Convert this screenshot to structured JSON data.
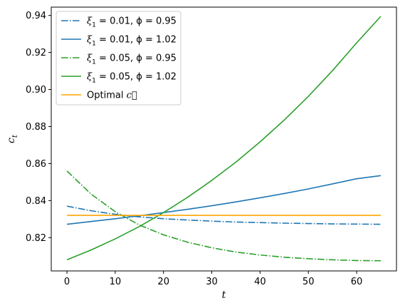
{
  "chart_data": {
    "type": "line",
    "title": "",
    "xlabel": "t",
    "ylabel": "c_t",
    "xlim": [
      -3.25,
      68.25
    ],
    "ylim": [
      0.802,
      0.9445
    ],
    "xticks": [
      0,
      10,
      20,
      30,
      40,
      50,
      60
    ],
    "xtick_labels": [
      "0",
      "10",
      "20",
      "30",
      "40",
      "50",
      "60"
    ],
    "yticks": [
      0.82,
      0.84,
      0.86,
      0.88,
      0.9,
      0.92,
      0.94
    ],
    "ytick_labels": [
      "0.82",
      "0.84",
      "0.86",
      "0.88",
      "0.90",
      "0.92",
      "0.94"
    ],
    "grid": false,
    "legend_position": "upper-left",
    "x": [
      0,
      5,
      10,
      15,
      20,
      25,
      30,
      35,
      40,
      45,
      50,
      55,
      60,
      65
    ],
    "series": [
      {
        "name_prefix": "ξ",
        "name_sub": "1",
        "name_rest": " = 0.01, ϕ = 0.95",
        "color": "#1f77b4",
        "style": "dashdot",
        "values": [
          0.837,
          0.8345,
          0.8326,
          0.8312,
          0.8302,
          0.8295,
          0.8289,
          0.8284,
          0.8281,
          0.8278,
          0.8276,
          0.8274,
          0.8273,
          0.8272
        ]
      },
      {
        "name_prefix": "ξ",
        "name_sub": "1",
        "name_rest": " = 0.01, ϕ = 1.02",
        "color": "#1f77b4",
        "style": "solid",
        "values": [
          0.8272,
          0.8287,
          0.8302,
          0.8318,
          0.8335,
          0.8353,
          0.8372,
          0.8393,
          0.8415,
          0.8438,
          0.8463,
          0.849,
          0.8518,
          0.8535
        ]
      },
      {
        "name_prefix": "ξ",
        "name_sub": "1",
        "name_rest": " = 0.05, ϕ = 0.95",
        "color": "#2ca02c",
        "style": "dashdot",
        "values": [
          0.856,
          0.8435,
          0.834,
          0.8268,
          0.8215,
          0.8175,
          0.8145,
          0.8122,
          0.8106,
          0.8094,
          0.8086,
          0.808,
          0.8076,
          0.8075
        ]
      },
      {
        "name_prefix": "ξ",
        "name_sub": "1",
        "name_rest": " = 0.05, ϕ = 1.02",
        "color": "#2ca02c",
        "style": "solid",
        "values": [
          0.808,
          0.8133,
          0.8193,
          0.826,
          0.8335,
          0.8418,
          0.8509,
          0.8608,
          0.8717,
          0.8835,
          0.8963,
          0.9102,
          0.9252,
          0.9395
        ]
      },
      {
        "name_prefix": "Optimal ",
        "name_sub": "",
        "name_rest": "c⃗",
        "color": "#ffa500",
        "style": "solid",
        "values": [
          0.832,
          0.832,
          0.832,
          0.832,
          0.832,
          0.832,
          0.832,
          0.832,
          0.832,
          0.832,
          0.832,
          0.832,
          0.832,
          0.832
        ]
      }
    ]
  }
}
